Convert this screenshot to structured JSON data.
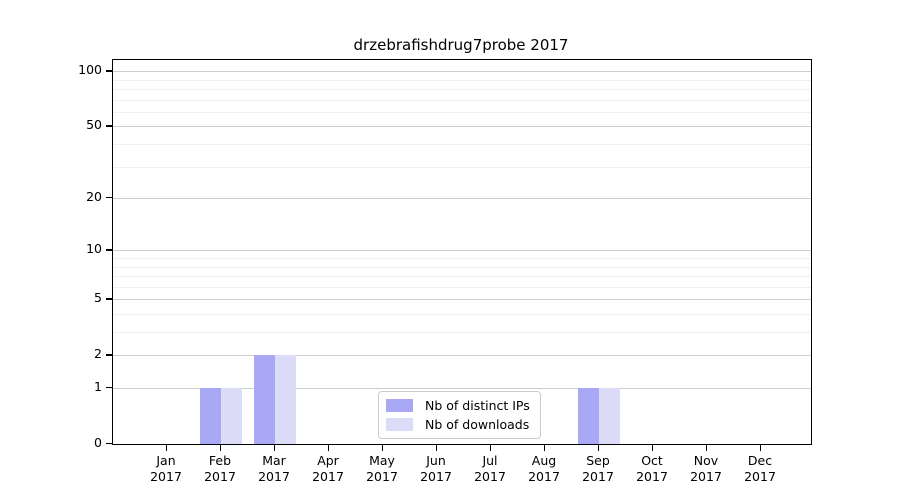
{
  "title": "drzebrafishdrug7probe 2017",
  "legend": {
    "items": [
      {
        "label": "Nb of distinct IPs",
        "color": "#a8a8f4"
      },
      {
        "label": "Nb of downloads",
        "color": "#dcdcf8"
      }
    ]
  },
  "chart_data": {
    "type": "bar",
    "title": "drzebrafishdrug7probe 2017",
    "categories": [
      "Jan",
      "Feb",
      "Mar",
      "Apr",
      "May",
      "Jun",
      "Jul",
      "Aug",
      "Sep",
      "Oct",
      "Nov",
      "Dec"
    ],
    "category_year": "2017",
    "series": [
      {
        "name": "Nb of distinct IPs",
        "color": "#a8a8f4",
        "values": [
          0,
          1,
          2,
          0,
          0,
          0,
          0,
          0,
          1,
          0,
          0,
          0
        ]
      },
      {
        "name": "Nb of downloads",
        "color": "#dcdcf8",
        "values": [
          0,
          1,
          2,
          0,
          0,
          0,
          0,
          0,
          1,
          0,
          0,
          0
        ]
      }
    ],
    "xlabel": "",
    "ylabel": "",
    "yscale": "log10(1+x)",
    "yticks": [
      0,
      1,
      2,
      5,
      10,
      20,
      50,
      100
    ],
    "minor_gridline_values": [
      3,
      4,
      6,
      7,
      8,
      9,
      30,
      40,
      60,
      70,
      80,
      90
    ],
    "ylim": [
      0,
      125
    ],
    "grid": true,
    "legend_position": "lower center",
    "colors": {
      "major_gridline": "#cdcdcd",
      "minor_gridline": "#f0f0f0",
      "axis": "#000000"
    }
  }
}
